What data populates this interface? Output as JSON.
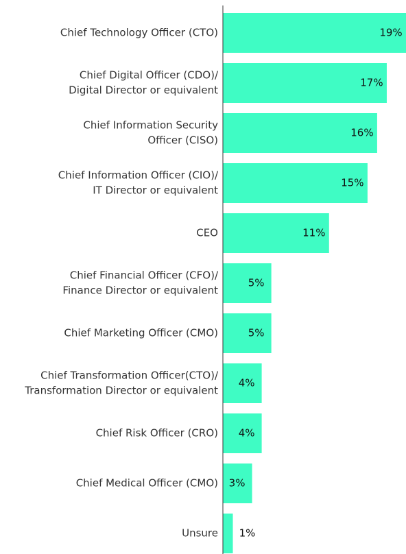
{
  "chart_data": {
    "type": "bar",
    "orientation": "horizontal",
    "categories": [
      [
        "Chief Technology Officer (CTO)"
      ],
      [
        "Chief Digital Officer (CDO)/",
        "Digital Director or equivalent"
      ],
      [
        "Chief Information Security",
        "Officer (CISO)"
      ],
      [
        "Chief Information Officer (CIO)/",
        "IT Director or equivalent"
      ],
      [
        "CEO"
      ],
      [
        "Chief Financial Officer (CFO)/",
        "Finance Director or equivalent"
      ],
      [
        "Chief Marketing Officer (CMO)"
      ],
      [
        "Chief Transformation Officer(CTO)/",
        "Transformation Director or equivalent"
      ],
      [
        "Chief Risk Officer (CRO)"
      ],
      [
        "Chief Medical Officer (CMO)"
      ],
      [
        "Unsure"
      ]
    ],
    "values": [
      19,
      17,
      16,
      15,
      11,
      5,
      5,
      4,
      4,
      3,
      1
    ],
    "value_labels": [
      "19%",
      "17%",
      "16%",
      "15%",
      "11%",
      "5%",
      "5%",
      "4%",
      "4%",
      "3%",
      "1%"
    ],
    "color": "#3ffcc4",
    "xlim": [
      0,
      19
    ]
  }
}
